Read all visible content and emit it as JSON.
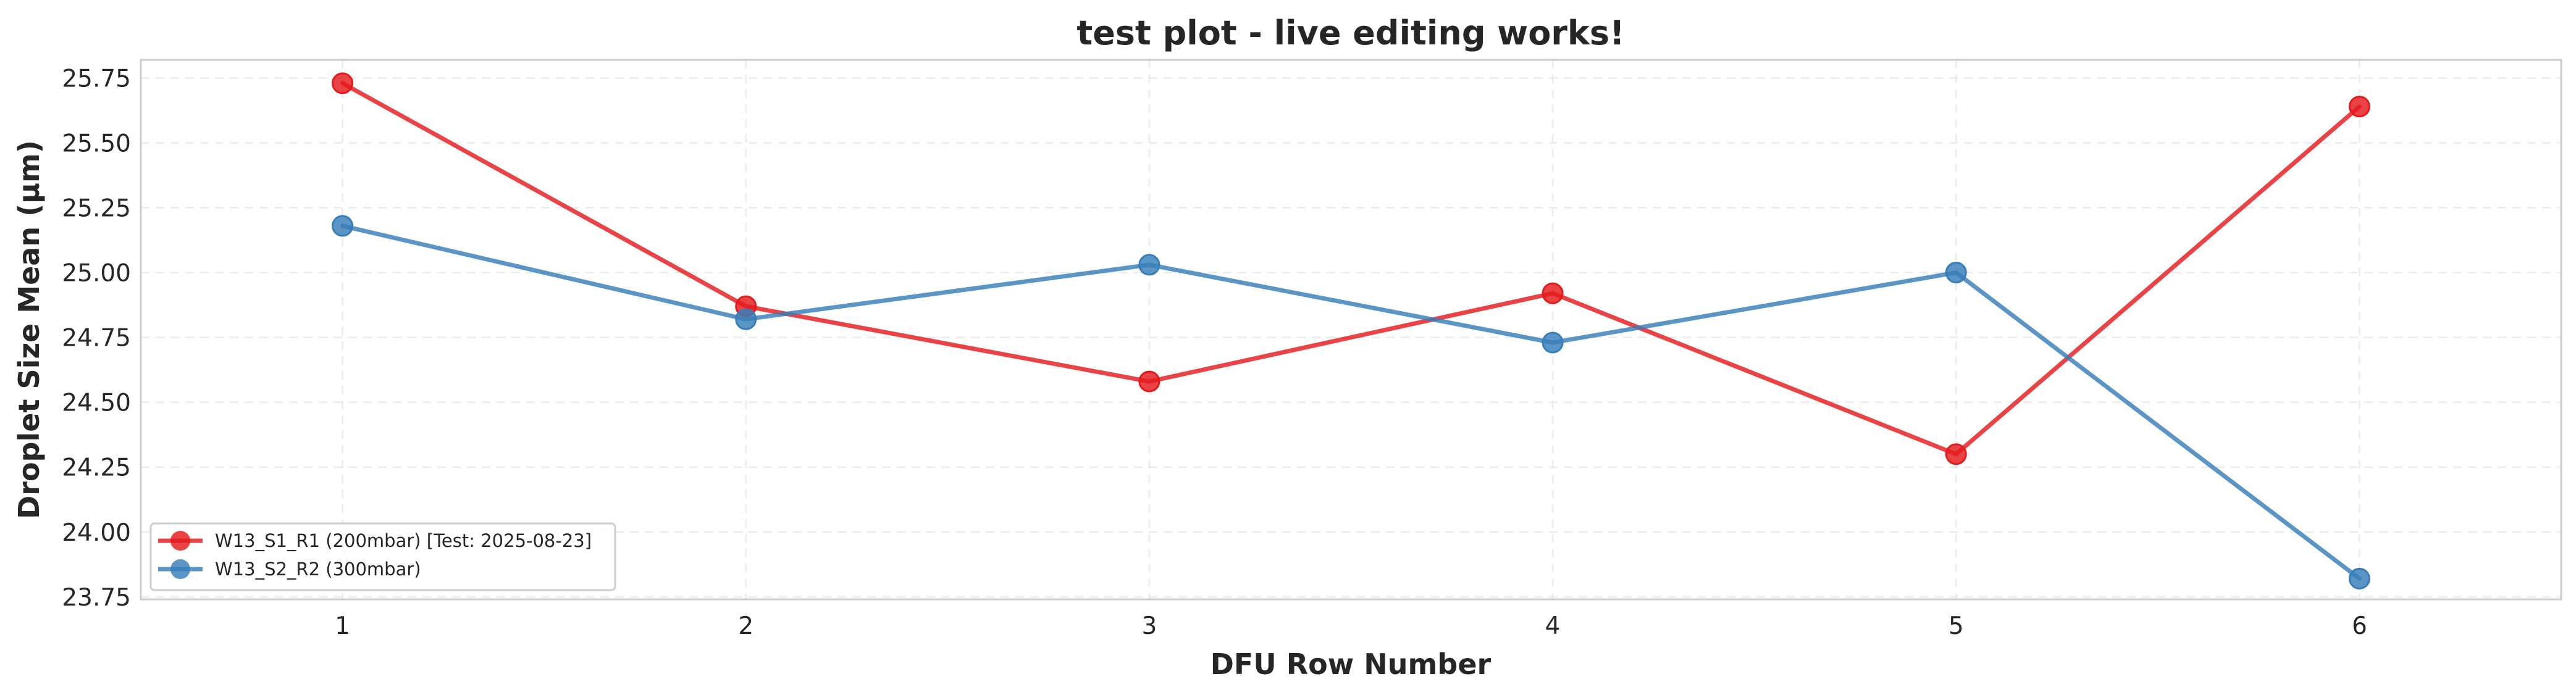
{
  "chart_data": {
    "type": "line",
    "title": "test plot - live editing works!",
    "xlabel": "DFU Row Number",
    "ylabel": "Droplet Size Mean (µm)",
    "x": [
      1,
      2,
      3,
      4,
      5,
      6
    ],
    "x_tick_labels": [
      "1",
      "2",
      "3",
      "4",
      "5",
      "6"
    ],
    "xlim": [
      0.5,
      6.5
    ],
    "ylim": [
      23.74,
      25.82
    ],
    "y_ticks": [
      23.75,
      24.0,
      24.25,
      24.5,
      24.75,
      25.0,
      25.25,
      25.5,
      25.75
    ],
    "y_tick_labels": [
      "23.75",
      "24.00",
      "24.25",
      "24.50",
      "24.75",
      "25.00",
      "25.25",
      "25.50",
      "25.75"
    ],
    "grid": true,
    "legend_position": "lower-left",
    "series": [
      {
        "name": "W13_S1_R1 (200mbar) [Test: 2025-08-23]",
        "color": "#e41a1c",
        "marker": "circle",
        "values": [
          25.73,
          24.87,
          24.58,
          24.92,
          24.3,
          25.64
        ]
      },
      {
        "name": "W13_S2_R2 (300mbar)",
        "color": "#377eb8",
        "marker": "circle",
        "values": [
          25.18,
          24.82,
          25.03,
          24.73,
          25.0,
          23.82
        ]
      }
    ]
  }
}
